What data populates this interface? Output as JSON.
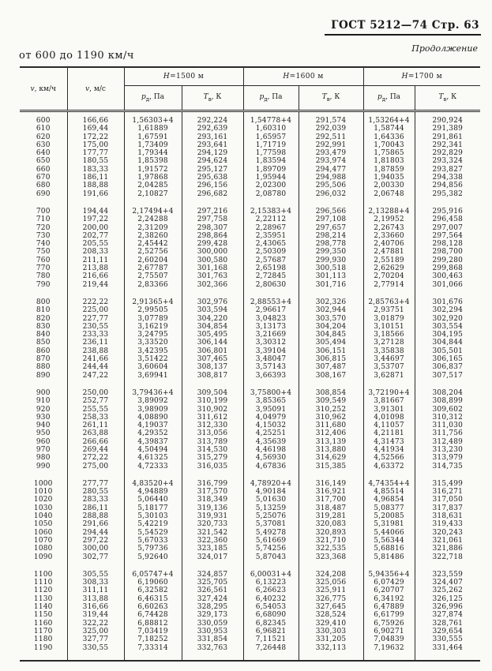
{
  "page": {
    "gost_header": "ГОСТ 5212—74 Стр. 63",
    "continuation_label": "Продолжение",
    "range_label": "от 600 до 1190 км/ч"
  },
  "table": {
    "columns": {
      "v_sym": "v",
      "v_kmh_unit": ", км/ч",
      "v_ms_unit": ", м/с"
    },
    "groups": [
      {
        "sym": "H",
        "rest": "=1500 м"
      },
      {
        "sym": "H",
        "rest": "=1600 м"
      },
      {
        "sym": "H",
        "rest": "=1700 м"
      }
    ],
    "sub": {
      "p_sym": "p",
      "p_sub": "д",
      "p_unit": ", Па",
      "t_sym": "T",
      "t_sub": "в",
      "t_unit": ", К"
    },
    "blocks": [
      [
        [
          "600",
          "166,66",
          "1,56303+4",
          "292,224",
          "1,54778+4",
          "291,574",
          "1,53264+4",
          "290,924"
        ],
        [
          "610",
          "169,44",
          "1,61889",
          "292,639",
          "1,60310",
          "292,039",
          "1,58744",
          "291,389"
        ],
        [
          "620",
          "172,22",
          "1,67591",
          "293,161",
          "1,65957",
          "292,511",
          "1,64336",
          "291,861"
        ],
        [
          "630",
          "175,00",
          "1,73409",
          "293,641",
          "1,71719",
          "292,991",
          "1,70043",
          "292,341"
        ],
        [
          "640",
          "177,77",
          "1,79344",
          "294,129",
          "1,77598",
          "293,479",
          "1,75865",
          "292,829"
        ],
        [
          "650",
          "180,55",
          "1,85398",
          "294,624",
          "1,83594",
          "293,974",
          "1,81803",
          "293,324"
        ],
        [
          "660",
          "183,33",
          "1,91572",
          "295,127",
          "1,89709",
          "294,477",
          "1,87859",
          "293,827"
        ],
        [
          "670",
          "186,11",
          "1,97868",
          "295,638",
          "1,95944",
          "294,988",
          "1,94035",
          "294,338"
        ],
        [
          "680",
          "188,88",
          "2,04285",
          "296,156",
          "2,02300",
          "295,506",
          "2,00330",
          "294,856"
        ],
        [
          "690",
          "191,66",
          "2,10827",
          "296,682",
          "2,08780",
          "296,032",
          "2,06748",
          "295,382"
        ]
      ],
      [
        [
          "700",
          "194,44",
          "2,17494+4",
          "297,216",
          "2,15383+4",
          "296,566",
          "2,13288+4",
          "295,916"
        ],
        [
          "710",
          "197,22",
          "2,24288",
          "297,758",
          "2,22112",
          "297,108",
          "2,19952",
          "296,458"
        ],
        [
          "720",
          "200,00",
          "2,31209",
          "298,307",
          "2,28967",
          "297,657",
          "2,26743",
          "297,007"
        ],
        [
          "730",
          "202,77",
          "2,38260",
          "298,864",
          "2,35951",
          "298,214",
          "2,33660",
          "297,564"
        ],
        [
          "740",
          "205,55",
          "2,45442",
          "299,428",
          "2,43065",
          "298,778",
          "2,40706",
          "298,128"
        ],
        [
          "750",
          "208,33",
          "2,52756",
          "300,000",
          "2,50309",
          "299,350",
          "2,47881",
          "298,700"
        ],
        [
          "760",
          "211,11",
          "2,60204",
          "300,580",
          "2,57687",
          "299,930",
          "2,55189",
          "299,280"
        ],
        [
          "770",
          "213,88",
          "2,67787",
          "301,168",
          "2,65198",
          "300,518",
          "2,62629",
          "299,868"
        ],
        [
          "780",
          "216,66",
          "2,75507",
          "301,763",
          "2,72845",
          "301,113",
          "2,70204",
          "300,463"
        ],
        [
          "790",
          "219,44",
          "2,83366",
          "302,366",
          "2,80630",
          "301,716",
          "2,77914",
          "301,066"
        ]
      ],
      [
        [
          "800",
          "222,22",
          "2,91365+4",
          "302,976",
          "2,88553+4",
          "302,326",
          "2,85763+4",
          "301,676"
        ],
        [
          "810",
          "225,00",
          "2,99505",
          "303,594",
          "2,96617",
          "302,944",
          "2,93751",
          "302,294"
        ],
        [
          "820",
          "227,77",
          "3,07789",
          "304,220",
          "3,04823",
          "303,570",
          "3,01879",
          "302,920"
        ],
        [
          "830",
          "230,55",
          "3,16219",
          "304,854",
          "3,13173",
          "304,204",
          "3,10151",
          "303,554"
        ],
        [
          "840",
          "233,33",
          "3,24795",
          "305,495",
          "3,21669",
          "304,845",
          "3,18566",
          "304,195"
        ],
        [
          "850",
          "236,11",
          "3,33520",
          "306,144",
          "3,30312",
          "305,494",
          "3,27128",
          "304,844"
        ],
        [
          "860",
          "238,88",
          "3,42395",
          "306,801",
          "3,39104",
          "306,151",
          "3,35838",
          "305,501"
        ],
        [
          "870",
          "241,66",
          "3,51422",
          "307,465",
          "3,48047",
          "306,815",
          "3,44697",
          "306,165"
        ],
        [
          "880",
          "244,44",
          "3,60604",
          "308,137",
          "3,57143",
          "307,487",
          "3,53707",
          "306,837"
        ],
        [
          "890",
          "247,22",
          "3,69941",
          "308,817",
          "3,66393",
          "308,167",
          "3,62871",
          "307,517"
        ]
      ],
      [
        [
          "900",
          "250,00",
          "3,79436+4",
          "309,504",
          "3,75800+4",
          "308,854",
          "3,72190+4",
          "308,204"
        ],
        [
          "910",
          "252,77",
          "3,89092",
          "310,199",
          "3,85365",
          "309,549",
          "3,81667",
          "308,899"
        ],
        [
          "920",
          "255,55",
          "3,98909",
          "310,902",
          "3,95091",
          "310,252",
          "3,91301",
          "309,602"
        ],
        [
          "930",
          "258,33",
          "4,08890",
          "311,612",
          "4,04979",
          "310,962",
          "4,01098",
          "310,312"
        ],
        [
          "940",
          "261,11",
          "4,19037",
          "312,330",
          "4,15032",
          "311,680",
          "4,11057",
          "311,030"
        ],
        [
          "950",
          "263,88",
          "4,29352",
          "313,056",
          "4,25251",
          "312,406",
          "4,21181",
          "311,756"
        ],
        [
          "960",
          "266,66",
          "4,39837",
          "313,789",
          "4,35639",
          "313,139",
          "4,31473",
          "312,489"
        ],
        [
          "970",
          "269,44",
          "4,50494",
          "314,530",
          "4,46198",
          "313,880",
          "4,41934",
          "313,230"
        ],
        [
          "980",
          "272,22",
          "4,61325",
          "315,279",
          "4,56930",
          "314,629",
          "4,52566",
          "313,979"
        ],
        [
          "990",
          "275,00",
          "4,72333",
          "316,035",
          "4,67836",
          "315,385",
          "4,63372",
          "314,735"
        ]
      ],
      [
        [
          "1000",
          "277,77",
          "4,83520+4",
          "316,799",
          "4,78920+4",
          "316,149",
          "4,74354+4",
          "315,499"
        ],
        [
          "1010",
          "280,55",
          "4,94889",
          "317,570",
          "4,90184",
          "316,921",
          "4,85514",
          "316,271"
        ],
        [
          "1020",
          "283,33",
          "5,06440",
          "318,349",
          "5,01630",
          "317,700",
          "4,96854",
          "317,050"
        ],
        [
          "1030",
          "286,11",
          "5,18177",
          "319,136",
          "5,13259",
          "318,487",
          "5,08377",
          "317,837"
        ],
        [
          "1040",
          "288,88",
          "5,30103",
          "319,931",
          "5,25076",
          "319,281",
          "5,20085",
          "318,631"
        ],
        [
          "1050",
          "291,66",
          "5,42219",
          "320,733",
          "5,37081",
          "320,083",
          "5,31981",
          "319,433"
        ],
        [
          "1060",
          "294,44",
          "5,54529",
          "321,542",
          "5,49278",
          "320,893",
          "5,44066",
          "320,243"
        ],
        [
          "1070",
          "297,22",
          "5,67033",
          "322,360",
          "5,61669",
          "321,710",
          "5,56344",
          "321,061"
        ],
        [
          "1080",
          "300,00",
          "5,79736",
          "323,185",
          "5,74256",
          "322,535",
          "5,68816",
          "321,886"
        ],
        [
          "1090",
          "302,77",
          "5,92640",
          "324,017",
          "5,87043",
          "323,368",
          "5,81486",
          "322,718"
        ]
      ],
      [
        [
          "1100",
          "305,55",
          "6,05747+4",
          "324,857",
          "6,00031+4",
          "324,208",
          "5,94356+4",
          "323,559"
        ],
        [
          "1110",
          "308,33",
          "6,19060",
          "325,705",
          "6,13223",
          "325,056",
          "6,07429",
          "324,407"
        ],
        [
          "1120",
          "311,11",
          "6,32582",
          "326,561",
          "6,26623",
          "325,911",
          "6,20707",
          "325,262"
        ],
        [
          "1130",
          "313,88",
          "6,46315",
          "327,424",
          "6,40232",
          "326,775",
          "6,34192",
          "326,125"
        ],
        [
          "1140",
          "316,66",
          "6,60263",
          "328,295",
          "6,54053",
          "327,645",
          "6,47889",
          "326,996"
        ],
        [
          "1150",
          "319,44",
          "6,74428",
          "329,173",
          "6,68090",
          "328,524",
          "6,61799",
          "327,874"
        ],
        [
          "1160",
          "322,22",
          "6,88812",
          "330,059",
          "6,82345",
          "329,410",
          "6,75926",
          "328,761"
        ],
        [
          "1170",
          "325,00",
          "7,03419",
          "330,953",
          "6,96821",
          "330,303",
          "6,90271",
          "329,654"
        ],
        [
          "1180",
          "327,77",
          "7,18252",
          "331,854",
          "7,11521",
          "331,205",
          "7,04839",
          "330,555"
        ],
        [
          "1190",
          "330,55",
          "7,33314",
          "332,763",
          "7,26448",
          "332,113",
          "7,19632",
          "331,464"
        ]
      ]
    ]
  }
}
